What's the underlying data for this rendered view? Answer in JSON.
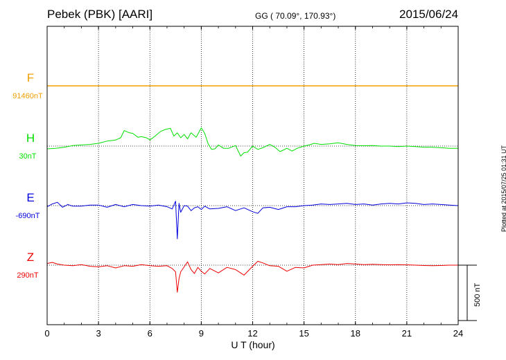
{
  "header": {
    "station": "Pebek (PBK)  [AARI]",
    "coords": "GG ( 70.09°, 170.93°)",
    "date": "2015/06/24"
  },
  "plotted_note": "Plotted at 2015/07/25 01:31  UT",
  "colors": {
    "F": "#f0a000",
    "H": "#00e000",
    "E": "#0000dd",
    "Z": "#ee0000",
    "grid": "#000000"
  },
  "chart_data": {
    "type": "line",
    "title": "Pebek (PBK)  [AARI]",
    "xlabel": "U T (hour)",
    "xlim": [
      0,
      24
    ],
    "xticks": [
      0,
      3,
      6,
      9,
      12,
      15,
      18,
      21,
      24
    ],
    "grid": true,
    "scale_bar": {
      "label": "500 nT",
      "value_nT": 500
    },
    "series": [
      {
        "name": "F",
        "baseline_label": "91460nT",
        "color": "#f0a000",
        "x": [
          0,
          24
        ],
        "y": [
          0,
          0
        ]
      },
      {
        "name": "H",
        "baseline_label": "30nT",
        "color": "#00e000",
        "x": [
          0,
          0.5,
          1,
          1.5,
          2,
          2.5,
          3,
          3.5,
          4,
          4.3,
          4.5,
          4.8,
          5,
          5.3,
          5.5,
          5.8,
          6,
          6.3,
          6.6,
          6.9,
          7.2,
          7.4,
          7.6,
          7.8,
          8,
          8.2,
          8.4,
          8.7,
          9,
          9.2,
          9.4,
          9.6,
          9.8,
          10,
          10.3,
          10.6,
          11,
          11.3,
          11.5,
          11.7,
          12,
          12.3,
          12.6,
          13,
          13.3,
          13.6,
          14,
          14.3,
          14.6,
          15,
          15.3,
          15.6,
          16,
          16.5,
          17,
          17.5,
          18,
          18.5,
          19,
          19.5,
          20,
          20.5,
          21,
          21.5,
          22,
          22.5,
          23,
          23.5,
          24
        ],
        "y": [
          -25,
          -20,
          -10,
          5,
          10,
          15,
          25,
          45,
          55,
          75,
          140,
          120,
          115,
          80,
          85,
          75,
          55,
          90,
          130,
          150,
          160,
          90,
          120,
          75,
          105,
          65,
          120,
          80,
          165,
          115,
          20,
          -30,
          -25,
          10,
          -20,
          -20,
          5,
          -90,
          -60,
          -55,
          0,
          -30,
          -15,
          15,
          -10,
          -50,
          -20,
          -45,
          -20,
          0,
          10,
          25,
          15,
          20,
          30,
          15,
          5,
          3,
          5,
          0,
          0,
          -5,
          0,
          -5,
          -10,
          -10,
          -15,
          -20,
          -20
        ]
      },
      {
        "name": "E",
        "baseline_label": "-690nT",
        "color": "#0000dd",
        "x": [
          0,
          0.3,
          0.6,
          0.9,
          1.2,
          1.5,
          2,
          2.5,
          3,
          3.5,
          4,
          4.5,
          5,
          5.5,
          6,
          6.5,
          7,
          7.3,
          7.5,
          7.6,
          7.7,
          7.8,
          8,
          8.2,
          8.4,
          8.6,
          8.8,
          9,
          9.2,
          9.5,
          10,
          10.5,
          11,
          11.5,
          12,
          12.3,
          12.6,
          13,
          13.5,
          14,
          14.5,
          15,
          15.5,
          16,
          16.5,
          17,
          17.5,
          18,
          18.5,
          19,
          19.5,
          20,
          20.5,
          21,
          21.5,
          22,
          22.5,
          23,
          23.5,
          24
        ],
        "y": [
          -10,
          15,
          30,
          -15,
          10,
          -5,
          -5,
          5,
          5,
          -15,
          10,
          -10,
          10,
          0,
          -5,
          5,
          -10,
          -30,
          40,
          -300,
          20,
          -60,
          0,
          -5,
          -45,
          -20,
          -10,
          -35,
          -5,
          -30,
          -25,
          -10,
          -45,
          -20,
          -55,
          -70,
          -20,
          -15,
          -35,
          -10,
          -10,
          0,
          5,
          15,
          10,
          15,
          20,
          10,
          15,
          5,
          15,
          20,
          15,
          25,
          20,
          10,
          15,
          10,
          5,
          0
        ]
      },
      {
        "name": "Z",
        "baseline_label": "290nT",
        "color": "#ee0000",
        "x": [
          0,
          0.3,
          0.6,
          1,
          1.5,
          2,
          2.5,
          3,
          3.5,
          4,
          4.5,
          5,
          5.5,
          6,
          6.5,
          7,
          7.3,
          7.5,
          7.6,
          7.7,
          7.8,
          8,
          8.2,
          8.4,
          8.6,
          8.8,
          9,
          9.2,
          9.5,
          10,
          10.5,
          11,
          11.5,
          12,
          12.3,
          12.6,
          13,
          13.5,
          14,
          14.5,
          15,
          15.5,
          16,
          16.5,
          17,
          17.5,
          18,
          18.5,
          19,
          19.5,
          20,
          20.5,
          21,
          21.5,
          22,
          22.5,
          23,
          23.5,
          24
        ],
        "y": [
          15,
          25,
          10,
          0,
          -5,
          5,
          -10,
          -15,
          -5,
          -25,
          -5,
          -10,
          5,
          -5,
          -10,
          -5,
          -30,
          -60,
          -245,
          -120,
          -60,
          -15,
          30,
          -40,
          -75,
          -20,
          -55,
          -80,
          -30,
          -70,
          -20,
          -40,
          -90,
          -10,
          35,
          20,
          -5,
          -10,
          -55,
          -20,
          -25,
          0,
          5,
          10,
          5,
          15,
          10,
          5,
          8,
          5,
          3,
          5,
          3,
          0,
          -3,
          -5,
          -3,
          0,
          0
        ]
      }
    ]
  }
}
